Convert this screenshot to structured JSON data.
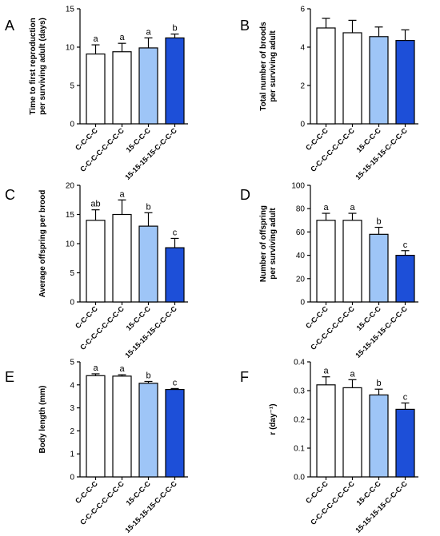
{
  "chart_data": [
    {
      "type": "bar",
      "panel": "A",
      "categories": [
        "C-C-C-C",
        "C-C-C-C-C-C-C-C",
        "15-C-C-C",
        "15-15-15-15-C-C-C-C"
      ],
      "values": [
        9.1,
        9.4,
        9.9,
        11.2
      ],
      "errors": [
        1.2,
        1.1,
        1.3,
        0.5
      ],
      "significance": [
        "a",
        "a",
        "a",
        "b"
      ],
      "ylabel_lines": [
        "Time to first reproduction",
        "per surviving adult (days)"
      ],
      "ylim": [
        0,
        15
      ],
      "yticks": [
        "0",
        "5",
        "10",
        "15"
      ],
      "colors": [
        "#ffffff",
        "#ffffff",
        "#9ec5f7",
        "#1d4fd8"
      ]
    },
    {
      "type": "bar",
      "panel": "B",
      "categories": [
        "C-C-C-C",
        "C-C-C-C-C-C-C-C",
        "15-C-C-C",
        "15-15-15-15-C-C-C-C"
      ],
      "values": [
        5.0,
        4.75,
        4.55,
        4.35
      ],
      "errors": [
        0.5,
        0.65,
        0.5,
        0.55
      ],
      "significance": [
        "",
        "",
        "",
        ""
      ],
      "ylabel_lines": [
        "Total number of broods",
        "per surviving adult"
      ],
      "ylim": [
        0,
        6
      ],
      "yticks": [
        "0",
        "2",
        "4",
        "6"
      ],
      "colors": [
        "#ffffff",
        "#ffffff",
        "#9ec5f7",
        "#1d4fd8"
      ]
    },
    {
      "type": "bar",
      "panel": "C",
      "categories": [
        "C-C-C-C",
        "C-C-C-C-C-C-C-C",
        "15-C-C-C",
        "15-15-15-15-C-C-C-C"
      ],
      "values": [
        14.0,
        15.0,
        13.0,
        9.3
      ],
      "errors": [
        1.8,
        2.5,
        2.3,
        1.6
      ],
      "significance": [
        "ab",
        "a",
        "b",
        "c"
      ],
      "ylabel_lines": [
        "Average offspring  per brood"
      ],
      "ylim": [
        0,
        20
      ],
      "yticks": [
        "0",
        "5",
        "10",
        "15",
        "20"
      ],
      "colors": [
        "#ffffff",
        "#ffffff",
        "#9ec5f7",
        "#1d4fd8"
      ]
    },
    {
      "type": "bar",
      "panel": "D",
      "categories": [
        "C-C-C-C",
        "C-C-C-C-C-C-C-C",
        "15-C-C-C",
        "15-15-15-15-C-C-C-C"
      ],
      "values": [
        70,
        70,
        58,
        40
      ],
      "errors": [
        6,
        6,
        6,
        4
      ],
      "significance": [
        "a",
        "a",
        "b",
        "c"
      ],
      "ylabel_lines": [
        "Number of offspring",
        "per surviving adult"
      ],
      "ylim": [
        0,
        100
      ],
      "yticks": [
        "0",
        "20",
        "40",
        "60",
        "80",
        "100"
      ],
      "colors": [
        "#ffffff",
        "#ffffff",
        "#9ec5f7",
        "#1d4fd8"
      ]
    },
    {
      "type": "bar",
      "panel": "E",
      "categories": [
        "C-C-C-C",
        "C-C-C-C-C-C-C-C",
        "15-C-C-C",
        "15-15-15-15-C-C-C-C"
      ],
      "values": [
        4.4,
        4.38,
        4.07,
        3.8
      ],
      "errors": [
        0.08,
        0.06,
        0.08,
        0.04
      ],
      "significance": [
        "a",
        "a",
        "b",
        "c"
      ],
      "ylabel_lines": [
        "Body length (mm)"
      ],
      "ylim": [
        0,
        5
      ],
      "yticks": [
        "0",
        "1",
        "2",
        "3",
        "4",
        "5"
      ],
      "colors": [
        "#ffffff",
        "#ffffff",
        "#9ec5f7",
        "#1d4fd8"
      ]
    },
    {
      "type": "bar",
      "panel": "F",
      "categories": [
        "C-C-C-C",
        "C-C-C-C-C-C-C-C",
        "15-C-C-C",
        "15-15-15-15-C-C-C-C"
      ],
      "values": [
        0.32,
        0.31,
        0.285,
        0.235
      ],
      "errors": [
        0.028,
        0.028,
        0.02,
        0.022
      ],
      "significance": [
        "a",
        "a",
        "b",
        "c"
      ],
      "ylabel_lines": [
        "r (day⁻¹)"
      ],
      "ylim": [
        0,
        0.4
      ],
      "yticks": [
        "0.0",
        "0.1",
        "0.2",
        "0.3",
        "0.4"
      ],
      "colors": [
        "#ffffff",
        "#ffffff",
        "#9ec5f7",
        "#1d4fd8"
      ]
    }
  ]
}
